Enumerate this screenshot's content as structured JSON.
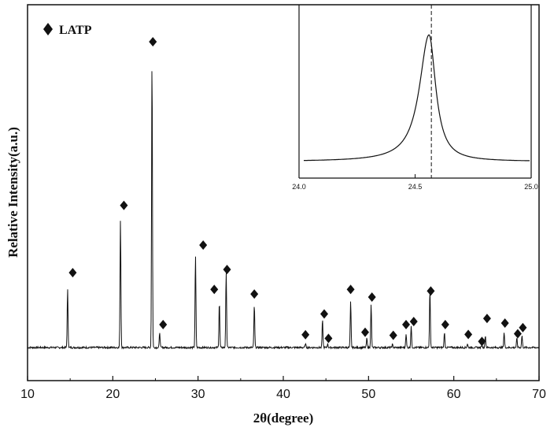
{
  "chart_data": [
    {
      "type": "line",
      "xlabel": "2θ(degree)",
      "ylabel": "Relative Intensity(a.u.)",
      "xlim": [
        10,
        70
      ],
      "ylim": [
        -0.05,
        1.0
      ],
      "x_ticks": [
        "10",
        "20",
        "30",
        "40",
        "50",
        "60",
        "70"
      ],
      "grid": false,
      "legend": {
        "position": "top-left",
        "marker": "diamond",
        "label": "LATP"
      },
      "series": [
        {
          "name": "LATP",
          "peaks": [
            {
              "x": 14.7,
              "y": 0.19
            },
            {
              "x": 20.9,
              "y": 0.42
            },
            {
              "x": 24.6,
              "y": 0.95
            },
            {
              "x": 25.5,
              "y": 0.05
            },
            {
              "x": 29.7,
              "y": 0.3
            },
            {
              "x": 32.5,
              "y": 0.15
            },
            {
              "x": 33.3,
              "y": 0.25
            },
            {
              "x": 36.6,
              "y": 0.14
            },
            {
              "x": 42.6,
              "y": 0.012
            },
            {
              "x": 44.6,
              "y": 0.09
            },
            {
              "x": 45.2,
              "y": 0.012
            },
            {
              "x": 47.9,
              "y": 0.15
            },
            {
              "x": 49.8,
              "y": 0.03
            },
            {
              "x": 50.3,
              "y": 0.14
            },
            {
              "x": 52.8,
              "y": 0.01
            },
            {
              "x": 54.4,
              "y": 0.045
            },
            {
              "x": 55.0,
              "y": 0.07
            },
            {
              "x": 57.2,
              "y": 0.19
            },
            {
              "x": 58.9,
              "y": 0.05
            },
            {
              "x": 61.6,
              "y": 0.012
            },
            {
              "x": 63.3,
              "y": 0.01
            },
            {
              "x": 63.7,
              "y": 0.04
            },
            {
              "x": 65.9,
              "y": 0.05
            },
            {
              "x": 67.4,
              "y": 0.03
            },
            {
              "x": 68.0,
              "y": 0.04
            }
          ]
        }
      ],
      "markers": [
        {
          "x": 15.3,
          "y": 0.245
        },
        {
          "x": 21.3,
          "y": 0.465
        },
        {
          "x": 24.7,
          "y": 1.0
        },
        {
          "x": 25.9,
          "y": 0.075
        },
        {
          "x": 30.6,
          "y": 0.335
        },
        {
          "x": 31.9,
          "y": 0.19
        },
        {
          "x": 33.4,
          "y": 0.255
        },
        {
          "x": 36.6,
          "y": 0.175
        },
        {
          "x": 42.6,
          "y": 0.042
        },
        {
          "x": 44.8,
          "y": 0.11
        },
        {
          "x": 45.3,
          "y": 0.03
        },
        {
          "x": 47.9,
          "y": 0.19
        },
        {
          "x": 49.6,
          "y": 0.05
        },
        {
          "x": 50.4,
          "y": 0.165
        },
        {
          "x": 52.9,
          "y": 0.04
        },
        {
          "x": 54.4,
          "y": 0.075
        },
        {
          "x": 55.3,
          "y": 0.085
        },
        {
          "x": 57.3,
          "y": 0.185
        },
        {
          "x": 59.0,
          "y": 0.075
        },
        {
          "x": 61.7,
          "y": 0.043
        },
        {
          "x": 63.3,
          "y": 0.02
        },
        {
          "x": 63.9,
          "y": 0.095
        },
        {
          "x": 66.0,
          "y": 0.08
        },
        {
          "x": 67.5,
          "y": 0.045
        },
        {
          "x": 68.1,
          "y": 0.065
        }
      ]
    },
    {
      "type": "line",
      "xlim": [
        24.0,
        25.0
      ],
      "x_ticks": [
        "24.0",
        "24.5",
        "25.0"
      ],
      "grid": false,
      "peak": {
        "x": 24.56,
        "y": 1.0
      },
      "baseline": 0.02,
      "dashed_line_x": 24.57
    }
  ]
}
